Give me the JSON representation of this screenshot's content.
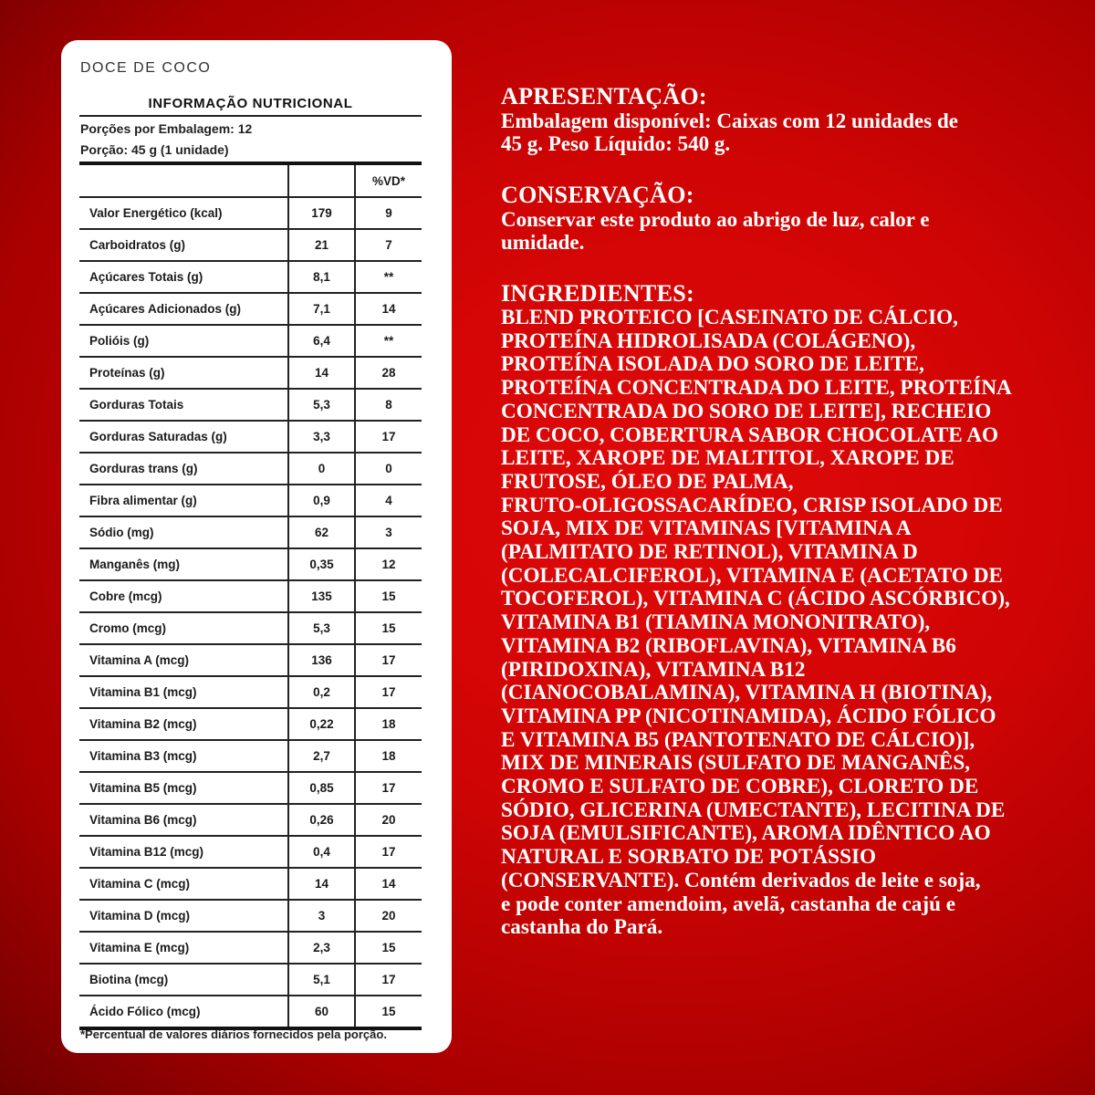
{
  "label": {
    "product": "DOCE DE COCO",
    "title": "INFORMAÇÃO NUTRICIONAL",
    "servings_per_package": "Porções por Embalagem: 12",
    "serving_size": "Porção: 45 g (1 unidade)",
    "columns": [
      "",
      "",
      "%VD*"
    ],
    "rows": [
      [
        "Valor Energético (kcal)",
        "179",
        "9"
      ],
      [
        "Carboidratos (g)",
        "21",
        "7"
      ],
      [
        "Açúcares Totais (g)",
        "8,1",
        "**"
      ],
      [
        "Açúcares Adicionados (g)",
        "7,1",
        "14"
      ],
      [
        "Polióis (g)",
        "6,4",
        "**"
      ],
      [
        "Proteínas (g)",
        "14",
        "28"
      ],
      [
        "Gorduras Totais",
        "5,3",
        "8"
      ],
      [
        "Gorduras Saturadas (g)",
        "3,3",
        "17"
      ],
      [
        "Gorduras trans (g)",
        "0",
        "0"
      ],
      [
        "Fibra alimentar (g)",
        "0,9",
        "4"
      ],
      [
        "Sódio (mg)",
        "62",
        "3"
      ],
      [
        "Manganês (mg)",
        "0,35",
        "12"
      ],
      [
        "Cobre (mcg)",
        "135",
        "15"
      ],
      [
        "Cromo (mcg)",
        "5,3",
        "15"
      ],
      [
        "Vitamina A (mcg)",
        "136",
        "17"
      ],
      [
        "Vitamina B1 (mcg)",
        "0,2",
        "17"
      ],
      [
        "Vitamina B2 (mcg)",
        "0,22",
        "18"
      ],
      [
        "Vitamina B3 (mcg)",
        "2,7",
        "18"
      ],
      [
        "Vitamina B5 (mcg)",
        "0,85",
        "17"
      ],
      [
        "Vitamina B6 (mcg)",
        "0,26",
        "20"
      ],
      [
        "Vitamina B12 (mcg)",
        "0,4",
        "17"
      ],
      [
        "Vitamina C (mcg)",
        "14",
        "14"
      ],
      [
        "Vitamina D (mcg)",
        "3",
        "20"
      ],
      [
        "Vitamina E (mcg)",
        "2,3",
        "15"
      ],
      [
        "Biotina (mcg)",
        "5,1",
        "17"
      ],
      [
        "Ácido Fólico (mcg)",
        "60",
        "15"
      ]
    ],
    "footnote": "*Percentual de valores diários fornecidos pela porção."
  },
  "presentation": {
    "heading": "APRESENTAÇÃO:",
    "lines": [
      "Embalagem disponível: Caixas com 12 unidades de",
      "45 g. Peso Líquido: 540 g."
    ]
  },
  "conservation": {
    "heading": "CONSERVAÇÃO:",
    "lines": [
      "Conservar este produto ao abrigo de luz, calor e",
      "umidade."
    ]
  },
  "ingredients": {
    "heading": "INGREDIENTES:",
    "lines": [
      "BLEND PROTEICO [CASEINATO DE CÁLCIO,",
      "PROTEÍNA HIDROLISADA (COLÁGENO),",
      "PROTEÍNA ISOLADA DO SORO DE LEITE,",
      "PROTEÍNA CONCENTRADA DO LEITE, PROTEÍNA",
      "CONCENTRADA DO SORO DE LEITE], RECHEIO",
      "DE COCO, COBERTURA SABOR CHOCOLATE AO",
      "LEITE, XAROPE DE MALTITOL, XAROPE DE",
      "FRUTOSE, ÓLEO DE PALMA,",
      "FRUTO-OLIGOSSACARÍDEO, CRISP ISOLADO DE",
      "SOJA, MIX DE VITAMINAS [VITAMINA A",
      "(PALMITATO DE RETINOL), VITAMINA D",
      "(COLECALCIFEROL), VITAMINA E (ACETATO DE",
      "TOCOFEROL), VITAMINA C (ÁCIDO ASCÓRBICO),",
      "VITAMINA B1 (TIAMINA MONONITRATO),",
      "VITAMINA B2 (RIBOFLAVINA), VITAMINA B6",
      "(PIRIDOXINA), VITAMINA B12",
      "(CIANOCOBALAMINA), VITAMINA H (BIOTINA),",
      "VITAMINA PP (NICOTINAMIDA), ÁCIDO FÓLICO",
      "E VITAMINA B5 (PANTOTENATO DE CÁLCIO)],",
      "MIX DE MINERAIS (SULFATO DE MANGANÊS,",
      "CROMO E SULFATO DE COBRE), CLORETO DE",
      "SÓDIO, GLICERINA (UMECTANTE), LECITINA DE",
      "SOJA (EMULSIFICANTE), AROMA IDÊNTICO AO",
      "NATURAL E SORBATO DE POTÁSSIO",
      "(CONSERVANTE). Contém derivados de leite e soja,",
      "e pode conter amendoim, avelã, castanha de cajú e",
      "castanha do Pará."
    ]
  }
}
